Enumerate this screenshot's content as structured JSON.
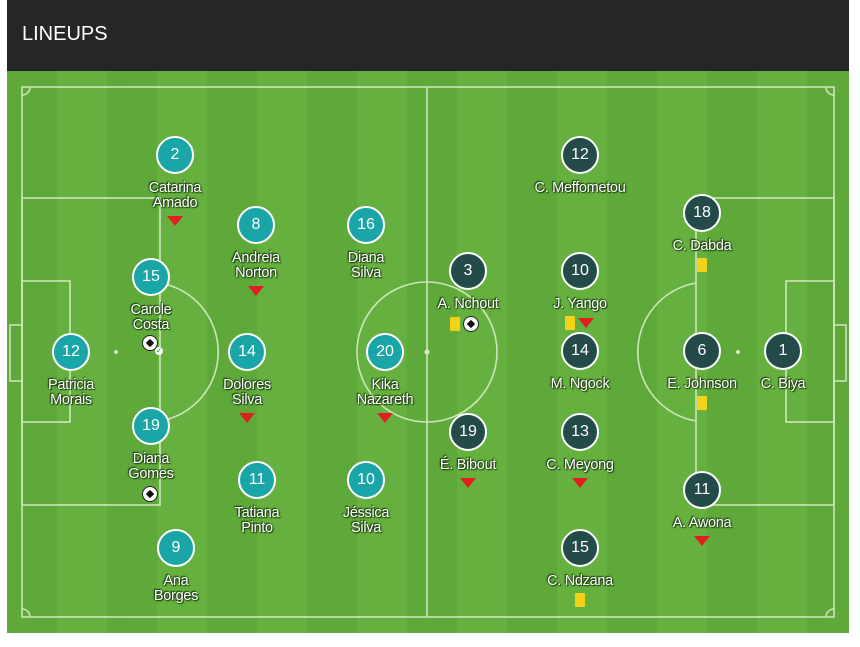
{
  "header": {
    "title": "LINEUPS"
  },
  "colors": {
    "home": "#1aa6a6",
    "away": "#244b4a",
    "pitch_light": "#66b03f",
    "pitch_dark": "#5fa83a",
    "sub": "#e02020",
    "card": "#f4d21a"
  },
  "home": [
    {
      "number": "12",
      "name": [
        "Patricia",
        "Morais"
      ],
      "icons": []
    },
    {
      "number": "2",
      "name": [
        "Catarina",
        "Amado"
      ],
      "icons": [
        "sub-icon"
      ]
    },
    {
      "number": "15",
      "name": [
        "Carole",
        "Costa"
      ],
      "icons": [
        "ball-icon"
      ]
    },
    {
      "number": "19",
      "name": [
        "Diana",
        "Gomes"
      ],
      "icons": [
        "ball-icon"
      ]
    },
    {
      "number": "9",
      "name": [
        "Ana",
        "Borges"
      ],
      "icons": []
    },
    {
      "number": "8",
      "name": [
        "Andreia",
        "Norton"
      ],
      "icons": [
        "sub-icon"
      ]
    },
    {
      "number": "14",
      "name": [
        "Dolores",
        "Silva"
      ],
      "icons": [
        "sub-icon"
      ]
    },
    {
      "number": "11",
      "name": [
        "Tatiana",
        "Pinto"
      ],
      "icons": []
    },
    {
      "number": "16",
      "name": [
        "Diana",
        "Silva"
      ],
      "icons": []
    },
    {
      "number": "20",
      "name": [
        "Kika",
        "Nazareth"
      ],
      "icons": [
        "sub-icon"
      ]
    },
    {
      "number": "10",
      "name": [
        "Jéssica",
        "Silva"
      ],
      "icons": []
    }
  ],
  "away": [
    {
      "number": "3",
      "name": [
        "A. Nchout"
      ],
      "icons": [
        "card-icon",
        "ball-icon"
      ]
    },
    {
      "number": "19",
      "name": [
        "É. Bibout"
      ],
      "icons": [
        "sub-icon"
      ]
    },
    {
      "number": "12",
      "name": [
        "C. Meffometou"
      ],
      "icons": []
    },
    {
      "number": "10",
      "name": [
        "J. Yango"
      ],
      "icons": [
        "card-icon",
        "sub-icon"
      ]
    },
    {
      "number": "14",
      "name": [
        "M. Ngock"
      ],
      "icons": []
    },
    {
      "number": "13",
      "name": [
        "C. Meyong"
      ],
      "icons": [
        "sub-icon"
      ]
    },
    {
      "number": "15",
      "name": [
        "C. Ndzana"
      ],
      "icons": [
        "card-icon"
      ]
    },
    {
      "number": "18",
      "name": [
        "C. Dabda"
      ],
      "icons": [
        "card-icon"
      ]
    },
    {
      "number": "6",
      "name": [
        "E. Johnson"
      ],
      "icons": [
        "card-icon"
      ]
    },
    {
      "number": "11",
      "name": [
        "A. Awona"
      ],
      "icons": [
        "sub-icon"
      ]
    },
    {
      "number": "1",
      "name": [
        "C. Biya"
      ],
      "icons": []
    }
  ]
}
